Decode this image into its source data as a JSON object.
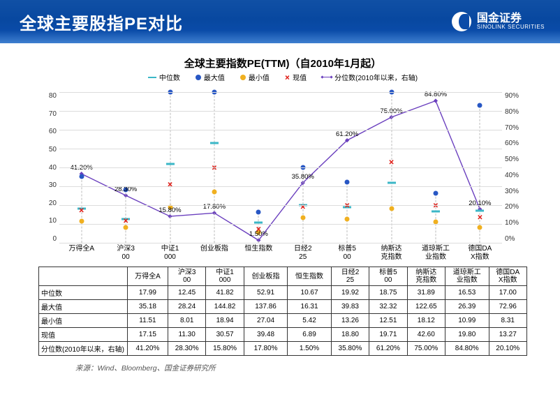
{
  "header": {
    "title": "全球主要股指PE对比",
    "logo_cn": "国金证券",
    "logo_en": "SINOLINK SECURITIES"
  },
  "chart": {
    "title": "全球主要指数PE(TTM)（自2010年1月起）",
    "legend": {
      "median": "中位数",
      "max": "最大值",
      "min": "最小值",
      "current": "现值",
      "percentile": "分位数(2010年以来，右轴)"
    },
    "categories": [
      "万得全A",
      "沪深300",
      "中证1000",
      "创业板指",
      "恒生指数",
      "日经225",
      "标普500",
      "纳斯达克指数",
      "道琼斯工业指数",
      "德国DAX指数"
    ],
    "median": [
      17.99,
      12.45,
      41.82,
      52.91,
      10.67,
      19.92,
      18.75,
      31.89,
      16.53,
      17.0
    ],
    "max": [
      35.18,
      28.24,
      144.82,
      137.86,
      16.31,
      39.83,
      32.32,
      122.65,
      26.39,
      72.96
    ],
    "min": [
      11.51,
      8.01,
      18.94,
      27.04,
      5.42,
      13.26,
      12.51,
      18.12,
      10.99,
      8.31
    ],
    "current": [
      17.15,
      11.3,
      30.57,
      39.48,
      6.89,
      18.8,
      19.71,
      42.6,
      19.8,
      13.27
    ],
    "percentile": [
      41.2,
      28.3,
      15.8,
      17.8,
      1.5,
      35.8,
      61.2,
      75.0,
      84.8,
      20.1
    ],
    "percentile_labels": [
      "41.20%",
      "28.30%",
      "15.80%",
      "17.80%",
      "1.50%",
      "35.80%",
      "61.20%",
      "75.00%",
      "84.80%",
      "20.10%"
    ],
    "y_left": {
      "min": 0,
      "max": 80,
      "step": 10
    },
    "y_right": {
      "min": 0,
      "max": 90,
      "step": 10
    },
    "colors": {
      "median": "#3bb7c7",
      "max": "#2857c4",
      "min": "#f0b020",
      "current": "#e0201a",
      "percentile_line": "#6a3fbe",
      "grid": "#dcdcdc",
      "dash": "#bbbbbb"
    }
  },
  "table": {
    "row_labels": [
      "中位数",
      "最大值",
      "最小值",
      "现值",
      "分位数(2010年以来，右轴)"
    ],
    "rows": [
      [
        "17.99",
        "12.45",
        "41.82",
        "52.91",
        "10.67",
        "19.92",
        "18.75",
        "31.89",
        "16.53",
        "17.00"
      ],
      [
        "35.18",
        "28.24",
        "144.82",
        "137.86",
        "16.31",
        "39.83",
        "32.32",
        "122.65",
        "26.39",
        "72.96"
      ],
      [
        "11.51",
        "8.01",
        "18.94",
        "27.04",
        "5.42",
        "13.26",
        "12.51",
        "18.12",
        "10.99",
        "8.31"
      ],
      [
        "17.15",
        "11.30",
        "30.57",
        "39.48",
        "6.89",
        "18.80",
        "19.71",
        "42.60",
        "19.80",
        "13.27"
      ],
      [
        "41.20%",
        "28.30%",
        "15.80%",
        "17.80%",
        "1.50%",
        "35.80%",
        "61.20%",
        "75.00%",
        "84.80%",
        "20.10%"
      ]
    ]
  },
  "source": "来源：Wind、Bloomberg、国金证券研究所"
}
